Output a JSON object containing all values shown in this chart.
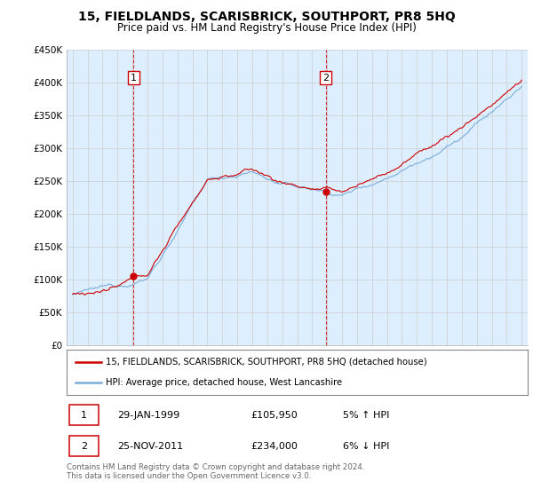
{
  "title": "15, FIELDLANDS, SCARISBRICK, SOUTHPORT, PR8 5HQ",
  "subtitle": "Price paid vs. HM Land Registry's House Price Index (HPI)",
  "legend_line1": "15, FIELDLANDS, SCARISBRICK, SOUTHPORT, PR8 5HQ (detached house)",
  "legend_line2": "HPI: Average price, detached house, West Lancashire",
  "transaction1_label": "1",
  "transaction1_date": "29-JAN-1999",
  "transaction1_price": "£105,950",
  "transaction1_hpi": "5% ↑ HPI",
  "transaction2_label": "2",
  "transaction2_date": "25-NOV-2011",
  "transaction2_price": "£234,000",
  "transaction2_hpi": "6% ↓ HPI",
  "footer": "Contains HM Land Registry data © Crown copyright and database right 2024.\nThis data is licensed under the Open Government Licence v3.0.",
  "red_color": "#cc0000",
  "blue_color": "#7aaddb",
  "vline_color": "#cc0000",
  "grid_color": "#cccccc",
  "bg_color": "#ffffff",
  "plot_bg_color": "#ddeeff",
  "ylim": [
    0,
    450000
  ],
  "yticks": [
    0,
    50000,
    100000,
    150000,
    200000,
    250000,
    300000,
    350000,
    400000,
    450000
  ],
  "ytick_labels": [
    "£0",
    "£50K",
    "£100K",
    "£150K",
    "£200K",
    "£250K",
    "£300K",
    "£350K",
    "£400K",
    "£450K"
  ],
  "transaction1_x": 1999.08,
  "transaction1_y": 105950,
  "transaction2_x": 2011.9,
  "transaction2_y": 234000,
  "xlim_left": 1994.6,
  "xlim_right": 2025.4
}
